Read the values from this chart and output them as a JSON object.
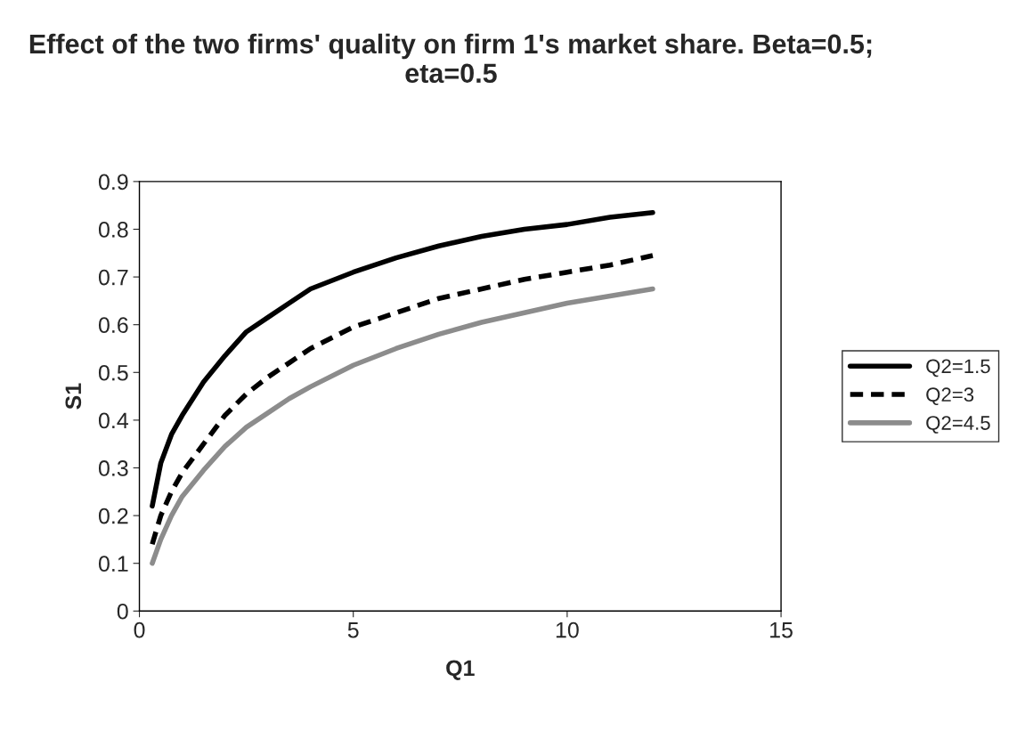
{
  "chart_data": {
    "type": "line",
    "title": "Effect of the two firms' quality on firm 1's market share. Beta=0.5; eta=0.5",
    "xlabel": "Q1",
    "ylabel": "S1",
    "x": [
      0.3,
      0.5,
      0.75,
      1,
      1.5,
      2,
      2.5,
      3,
      3.5,
      4,
      5,
      6,
      7,
      8,
      9,
      10,
      11,
      12
    ],
    "series": [
      {
        "name": "Q2=1.5",
        "color": "#000000",
        "line_style": "solid",
        "values": [
          0.22,
          0.31,
          0.37,
          0.41,
          0.48,
          0.535,
          0.585,
          0.615,
          0.645,
          0.675,
          0.71,
          0.74,
          0.765,
          0.785,
          0.8,
          0.81,
          0.825,
          0.835
        ]
      },
      {
        "name": "Q2=3",
        "color": "#000000",
        "line_style": "dashed",
        "values": [
          0.14,
          0.2,
          0.25,
          0.29,
          0.35,
          0.41,
          0.455,
          0.49,
          0.52,
          0.55,
          0.595,
          0.625,
          0.655,
          0.675,
          0.695,
          0.71,
          0.725,
          0.745
        ]
      },
      {
        "name": "Q2=4.5",
        "color": "#8c8c8c",
        "line_style": "solid",
        "values": [
          0.1,
          0.15,
          0.2,
          0.24,
          0.295,
          0.345,
          0.385,
          0.415,
          0.445,
          0.47,
          0.515,
          0.55,
          0.58,
          0.605,
          0.625,
          0.645,
          0.66,
          0.675
        ]
      }
    ],
    "xlim": [
      0,
      15
    ],
    "xticks": [
      0,
      5,
      10,
      15
    ],
    "ylim": [
      0,
      0.9
    ],
    "yticks": [
      0,
      0.1,
      0.2,
      0.3,
      0.4,
      0.5,
      0.6,
      0.7,
      0.8,
      0.9
    ],
    "grid": false,
    "legend": "right",
    "marker": "none"
  }
}
